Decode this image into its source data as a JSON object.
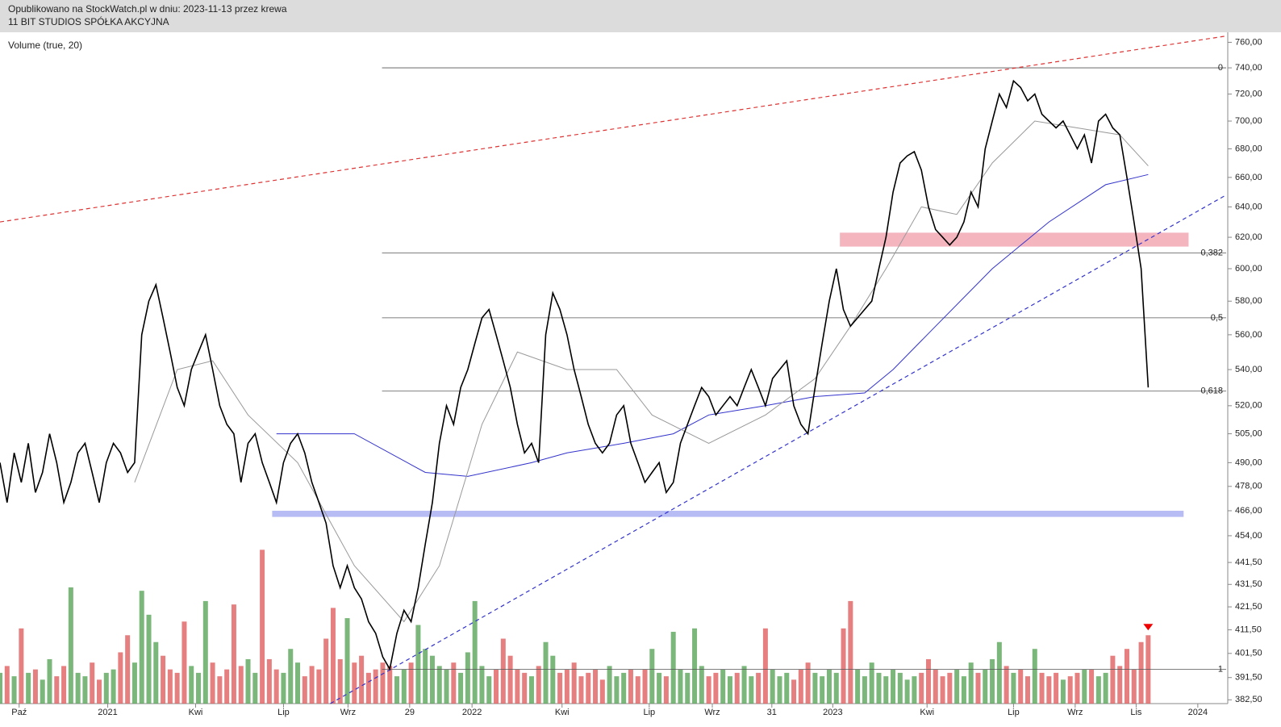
{
  "chart_data": {
    "type": "line",
    "published": "Opublikowano na StockWatch.pl w dniu: 2023-11-13 przez krewa",
    "title": "11 BIT STUDIOS SPÓŁKA AKCYJNA",
    "volume_label": "Volume (true, 20)",
    "log_scale": true,
    "xlim": [
      0,
      173
    ],
    "ylim": [
      381,
      768
    ],
    "yticks": [
      {
        "value": 760,
        "label": "760,00"
      },
      {
        "value": 740,
        "label": "740,00"
      },
      {
        "value": 720,
        "label": "720,00"
      },
      {
        "value": 700,
        "label": "700,00"
      },
      {
        "value": 680,
        "label": "680,00"
      },
      {
        "value": 660,
        "label": "660,00"
      },
      {
        "value": 640,
        "label": "640,00"
      },
      {
        "value": 620,
        "label": "620,00"
      },
      {
        "value": 600,
        "label": "600,00"
      },
      {
        "value": 580,
        "label": "580,00"
      },
      {
        "value": 560,
        "label": "560,00"
      },
      {
        "value": 540,
        "label": "540,00"
      },
      {
        "value": 520,
        "label": "520,00"
      },
      {
        "value": 505,
        "label": "505,00"
      },
      {
        "value": 490,
        "label": "490,00"
      },
      {
        "value": 478,
        "label": "478,00"
      },
      {
        "value": 466,
        "label": "466,00"
      },
      {
        "value": 454,
        "label": "454,00"
      },
      {
        "value": 441.5,
        "label": "441,50"
      },
      {
        "value": 431.5,
        "label": "431,50"
      },
      {
        "value": 421.5,
        "label": "421,50"
      },
      {
        "value": 411.5,
        "label": "411,50"
      },
      {
        "value": 401.5,
        "label": "401,50"
      },
      {
        "value": 391.5,
        "label": "391,50"
      },
      {
        "value": 382.5,
        "label": "382,50"
      }
    ],
    "xticks": [
      {
        "value": 2.7,
        "label": "Paź"
      },
      {
        "value": 15.2,
        "label": "2021"
      },
      {
        "value": 27.6,
        "label": "Kwi"
      },
      {
        "value": 40,
        "label": "Lip"
      },
      {
        "value": 49.1,
        "label": "Wrz"
      },
      {
        "value": 57.8,
        "label": "29"
      },
      {
        "value": 66.6,
        "label": "2022"
      },
      {
        "value": 79.3,
        "label": "Kwi"
      },
      {
        "value": 91.6,
        "label": "Lip"
      },
      {
        "value": 100.5,
        "label": "Wrz"
      },
      {
        "value": 108.9,
        "label": "31"
      },
      {
        "value": 117.5,
        "label": "2023"
      },
      {
        "value": 130.8,
        "label": "Kwi"
      },
      {
        "value": 143,
        "label": "Lip"
      },
      {
        "value": 151.7,
        "label": "Wrz"
      },
      {
        "value": 160.3,
        "label": "Lis"
      },
      {
        "value": 169,
        "label": "2024"
      }
    ],
    "series": [
      {
        "color": "#000000",
        "values": [
          490,
          470,
          495,
          480,
          500,
          475,
          485,
          505,
          490,
          470,
          480,
          495,
          500,
          485,
          470,
          490,
          500,
          495,
          485,
          490,
          560,
          580,
          590,
          570,
          550,
          530,
          520,
          540,
          550,
          560,
          540,
          520,
          510,
          505,
          480,
          500,
          505,
          490,
          480,
          470,
          490,
          500,
          505,
          495,
          480,
          470,
          460,
          440,
          430,
          440,
          430,
          425,
          415,
          410,
          400,
          395,
          410,
          420,
          415,
          430,
          450,
          470,
          500,
          520,
          510,
          530,
          540,
          555,
          570,
          575,
          560,
          545,
          530,
          510,
          495,
          500,
          490,
          560,
          585,
          575,
          560,
          540,
          525,
          510,
          500,
          495,
          500,
          515,
          520,
          500,
          490,
          480,
          485,
          490,
          475,
          480,
          500,
          510,
          520,
          530,
          525,
          515,
          520,
          525,
          520,
          530,
          540,
          530,
          520,
          535,
          540,
          545,
          520,
          510,
          505,
          530,
          555,
          580,
          600,
          575,
          565,
          570,
          575,
          580,
          600,
          620,
          650,
          670,
          675,
          678,
          665,
          640,
          625,
          620,
          615,
          620,
          630,
          650,
          640,
          680,
          700,
          720,
          710,
          730,
          725,
          715,
          720,
          705,
          700,
          695,
          700,
          690,
          680,
          690,
          670,
          700,
          705,
          695,
          690,
          660,
          630,
          600,
          530
        ]
      },
      {
        "color": "#999999",
        "x": [
          19,
          25,
          30,
          35,
          42,
          50,
          57,
          62,
          68,
          73,
          80,
          87,
          92,
          100,
          108,
          115,
          120,
          125,
          130,
          135,
          140,
          146,
          152,
          158,
          162
        ],
        "values": [
          480,
          540,
          545,
          515,
          490,
          440,
          415,
          440,
          510,
          550,
          540,
          540,
          515,
          500,
          515,
          535,
          565,
          600,
          640,
          635,
          670,
          700,
          695,
          690,
          668
        ]
      },
      {
        "color": "#3333cc",
        "x": [
          39,
          50,
          60,
          66,
          75,
          80,
          88,
          95,
          100,
          108,
          115,
          122,
          126,
          132,
          140,
          148,
          156,
          162
        ],
        "values": [
          505,
          505,
          485,
          483,
          490,
          495,
          500,
          505,
          515,
          520,
          525,
          527,
          540,
          565,
          600,
          630,
          655,
          662
        ]
      }
    ],
    "volume": {
      "ylim": [
        0,
        5.24
      ],
      "level": {
        "value": 1,
        "label": "1"
      },
      "up_color": "#5aa55a",
      "down_color": "#e06060",
      "values": [
        0.9,
        1.1,
        0.8,
        2.2,
        0.9,
        1.0,
        0.7,
        1.3,
        0.8,
        1.1,
        3.4,
        0.9,
        0.8,
        1.2,
        0.7,
        0.9,
        1.0,
        1.5,
        2.0,
        1.2,
        3.3,
        2.6,
        1.8,
        1.4,
        1.0,
        0.9,
        2.4,
        1.1,
        0.9,
        3.0,
        1.2,
        0.8,
        1.0,
        2.9,
        1.1,
        1.3,
        0.9,
        4.5,
        1.3,
        1.0,
        0.9,
        1.6,
        1.2,
        0.8,
        1.1,
        1.0,
        1.9,
        2.8,
        1.3,
        2.5,
        1.2,
        1.4,
        0.9,
        1.0,
        1.2,
        1.1,
        0.8,
        1.0,
        1.2,
        2.3,
        1.6,
        1.4,
        1.1,
        1.0,
        1.2,
        0.9,
        1.5,
        3.0,
        1.1,
        0.8,
        1.0,
        1.9,
        1.4,
        1.0,
        0.9,
        0.8,
        1.1,
        1.8,
        1.4,
        0.9,
        1.0,
        1.2,
        0.8,
        0.9,
        1.0,
        0.7,
        1.1,
        0.8,
        0.9,
        1.0,
        0.8,
        1.0,
        1.6,
        0.9,
        0.8,
        2.1,
        1.0,
        0.9,
        2.2,
        1.1,
        0.8,
        0.9,
        1.0,
        0.8,
        0.9,
        1.1,
        0.8,
        0.9,
        2.2,
        1.0,
        0.8,
        0.9,
        0.7,
        1.0,
        1.2,
        0.9,
        0.8,
        1.0,
        0.9,
        2.2,
        3.0,
        1.0,
        0.8,
        1.2,
        0.9,
        0.8,
        1.0,
        0.9,
        0.7,
        0.8,
        0.9,
        1.3,
        1.0,
        0.8,
        0.9,
        1.0,
        0.8,
        1.2,
        0.9,
        1.0,
        1.3,
        1.8,
        1.1,
        0.9,
        1.0,
        0.8,
        1.6,
        0.9,
        0.8,
        0.9,
        0.7,
        0.8,
        0.9,
        1.0,
        1.0,
        0.8,
        0.9,
        1.4,
        1.1,
        1.6,
        1.0,
        1.8,
        2.0
      ]
    },
    "levels": [
      {
        "value": 740,
        "label": "0"
      },
      {
        "value": 610,
        "label": "0,382"
      },
      {
        "value": 570,
        "label": "0,5"
      },
      {
        "value": 528,
        "label": "0,618"
      }
    ],
    "levels_start": 53.9,
    "zones": [
      {
        "color": "#f5b5bf",
        "x": [
          118.5,
          167.7
        ],
        "y": [
          614,
          623
        ]
      },
      {
        "color": "#b8bcf5",
        "x": [
          38.4,
          167
        ],
        "y": [
          463,
          466
        ]
      }
    ],
    "trendlines": [
      {
        "color": "#dd3333",
        "x": [
          0,
          173
        ],
        "y": [
          630,
          765
        ]
      },
      {
        "color": "#3333cc",
        "x": [
          46.6,
          173
        ],
        "y": [
          381,
          648
        ]
      }
    ]
  }
}
